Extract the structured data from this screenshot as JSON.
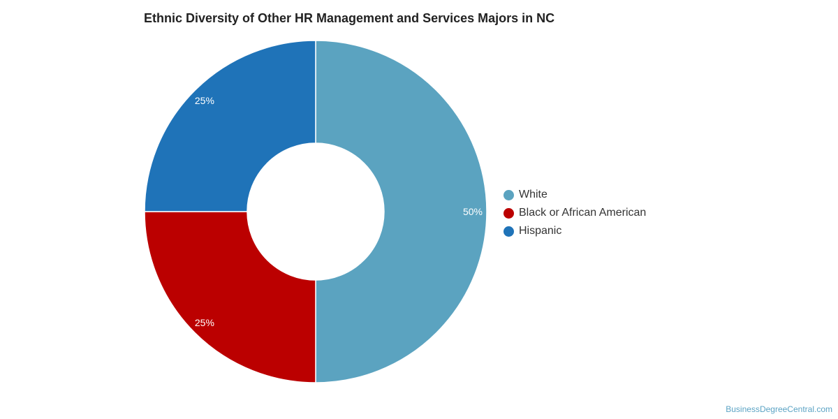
{
  "chart_data": {
    "type": "pie",
    "variant": "donut",
    "title": "Ethnic Diversity of Other HR Management and Services Majors in NC",
    "categories": [
      "White",
      "Black or African American",
      "Hispanic"
    ],
    "values": [
      50,
      25,
      25
    ],
    "labels": [
      "50%",
      "25%",
      "25%"
    ],
    "colors": [
      "#5ba3c0",
      "#bb0000",
      "#1f73b8"
    ],
    "legend_position": "right"
  },
  "credit": "BusinessDegreeCentral.com"
}
